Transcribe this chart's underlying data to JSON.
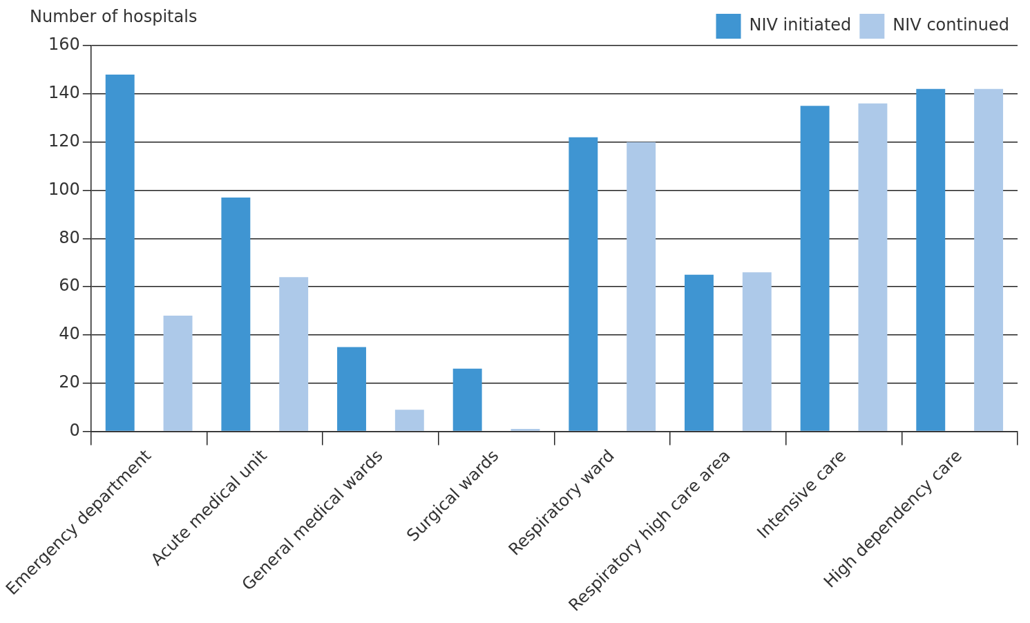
{
  "chart_data": {
    "type": "bar",
    "ylabel": "Number of hospitals",
    "categories": [
      "Emergency department",
      "Acute medical unit",
      "General medical wards",
      "Surgical wards",
      "Respiratory ward",
      "Respiratory high care area",
      "Intensive care",
      "High dependency care"
    ],
    "series": [
      {
        "name": "NIV initiated",
        "color": "#3f95d2",
        "values": [
          148,
          97,
          35,
          26,
          122,
          65,
          135,
          142
        ]
      },
      {
        "name": "NIV continued",
        "color": "#adc9e9",
        "values": [
          48,
          64,
          9,
          1,
          120,
          66,
          136,
          142
        ]
      }
    ],
    "ylim": [
      0,
      160
    ],
    "yticks": [
      0,
      20,
      40,
      60,
      80,
      100,
      120,
      140,
      160
    ],
    "grid": "y",
    "legend": "top right"
  }
}
